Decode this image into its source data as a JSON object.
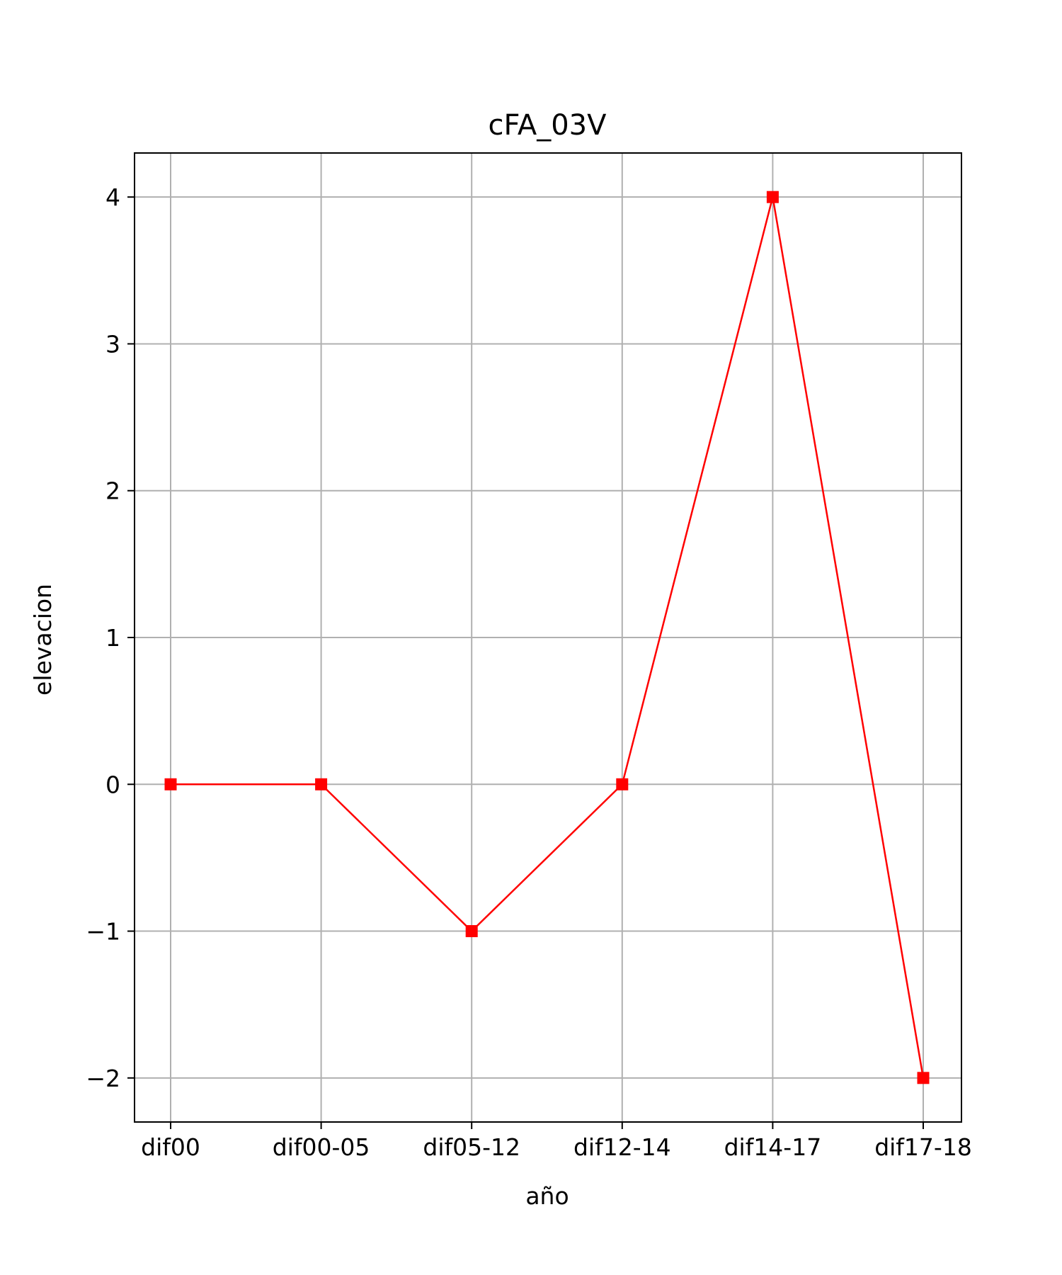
{
  "chart_data": {
    "type": "line",
    "title": "cFA_03V",
    "xlabel": "año",
    "ylabel": "elevacion",
    "categories": [
      "dif00",
      "dif00-05",
      "dif05-12",
      "dif12-14",
      "dif14-17",
      "dif17-18"
    ],
    "series": [
      {
        "values": [
          0,
          0,
          -1,
          0,
          4,
          -2
        ],
        "color": "#ff0000",
        "marker": "square"
      }
    ],
    "ylim": [
      -2.3,
      4.3
    ],
    "yticks": [
      -2,
      -1,
      0,
      1,
      2,
      3,
      4
    ],
    "ytick_labels": [
      "−2",
      "−1",
      "0",
      "1",
      "2",
      "3",
      "4"
    ],
    "grid": true,
    "grid_color": "#b0b0b0",
    "legend": false
  }
}
